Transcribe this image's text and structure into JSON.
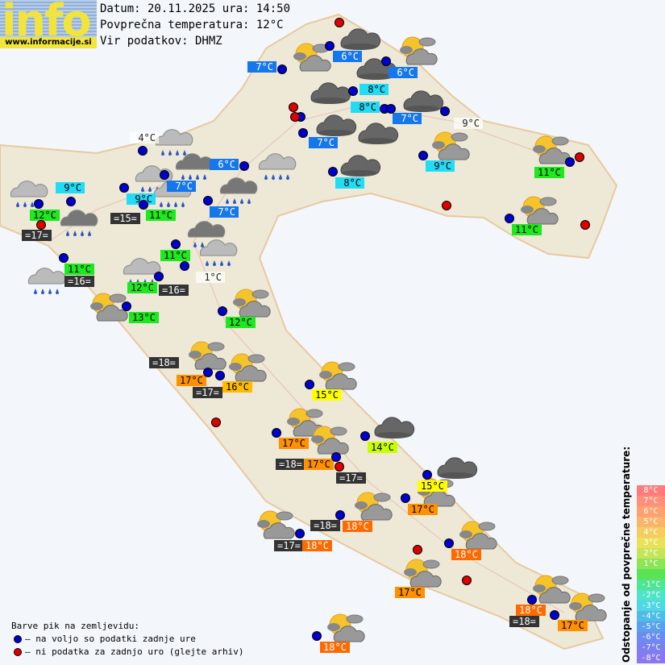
{
  "header": {
    "logo_text": "info",
    "logo_url": "www.informacije.si",
    "date_line": "Datum: 20.11.2025 ura: 14:50",
    "avg_temp_line": "Povprečna temperatura: 12°C",
    "source_line": "Vir podatkov: DHMZ"
  },
  "colors": {
    "blue": "#1577ec",
    "cyan": "#22dcf6",
    "green": "#1ee81e",
    "dark": "#333333",
    "orange": "#ff9000",
    "amber": "#ffbb00",
    "yellow": "#ffff00",
    "lime": "#c8ff00",
    "red_orange": "#ff6a00",
    "dot_ok": "#0000cc",
    "dot_missing": "#dd0000",
    "land": "#eee8d6",
    "sea": "#f3f7fb"
  },
  "stations": [
    {
      "label": "7°C",
      "style": "blue"
    },
    {
      "label": "6°C",
      "style": "blue"
    },
    {
      "label": "6°C",
      "style": "blue"
    },
    {
      "label": "8°C",
      "style": "cyan"
    },
    {
      "label": "8°C",
      "style": "cyan"
    },
    {
      "label": "7°C",
      "style": "blue"
    },
    {
      "label": "7°C",
      "style": "blue"
    },
    {
      "label": "9°C",
      "style": "plain"
    },
    {
      "label": "9°C",
      "style": "cyan"
    },
    {
      "label": "8°C",
      "style": "cyan"
    },
    {
      "label": "6°C",
      "style": "blue"
    },
    {
      "label": "7°C",
      "style": "blue"
    },
    {
      "label": "7°C",
      "style": "blue"
    },
    {
      "label": "9°C",
      "style": "cyan"
    },
    {
      "label": "9°C",
      "style": "cyan"
    },
    {
      "label": "4°C",
      "style": "plain"
    },
    {
      "label": "12°C",
      "style": "green"
    },
    {
      "label": "=17=",
      "style": "dark"
    },
    {
      "label": "=15=",
      "style": "dark"
    },
    {
      "label": "11°C",
      "style": "green"
    },
    {
      "label": "11°C",
      "style": "green"
    },
    {
      "label": "=16=",
      "style": "dark"
    },
    {
      "label": "11°C",
      "style": "green"
    },
    {
      "label": "1°C",
      "style": "plain"
    },
    {
      "label": "12°C",
      "style": "green"
    },
    {
      "label": "=16=",
      "style": "dark"
    },
    {
      "label": "13°C",
      "style": "green"
    },
    {
      "label": "12°C",
      "style": "green"
    },
    {
      "label": "11°C",
      "style": "green"
    },
    {
      "label": "11°C",
      "style": "green"
    },
    {
      "label": "=18=",
      "style": "dark"
    },
    {
      "label": "17°C",
      "style": "orange"
    },
    {
      "label": "=17=",
      "style": "dark"
    },
    {
      "label": "16°C",
      "style": "amber"
    },
    {
      "label": "15°C",
      "style": "yellow"
    },
    {
      "label": "17°C",
      "style": "orange"
    },
    {
      "label": "14°C",
      "style": "lime"
    },
    {
      "label": "=18=",
      "style": "dark"
    },
    {
      "label": "17°C",
      "style": "orange"
    },
    {
      "label": "=17=",
      "style": "dark"
    },
    {
      "label": "15°C",
      "style": "yellow"
    },
    {
      "label": "17°C",
      "style": "orange"
    },
    {
      "label": "=18=",
      "style": "dark"
    },
    {
      "label": "18°C",
      "style": "red_orange"
    },
    {
      "label": "=17=",
      "style": "dark"
    },
    {
      "label": "18°C",
      "style": "red_orange"
    },
    {
      "label": "18°C",
      "style": "red_orange"
    },
    {
      "label": "17°C",
      "style": "orange"
    },
    {
      "label": "18°C",
      "style": "red_orange"
    },
    {
      "label": "=18=",
      "style": "dark"
    },
    {
      "label": "17°C",
      "style": "orange"
    },
    {
      "label": "18°C",
      "style": "red_orange"
    }
  ],
  "weather_icons": [
    "partly-cloudy",
    "dark-cloud",
    "partly-cloudy",
    "dark-cloud",
    "dark-cloud",
    "dark-cloud",
    "dark-cloud",
    "dark-cloud",
    "partly-cloudy",
    "partly-cloudy",
    "dark-cloud",
    "partly-cloudy",
    "rain-cloud",
    "rain-cloud",
    "rain-cloud",
    "rain-cloud",
    "rain-cloud",
    "rain-cloud",
    "rain-cloud",
    "rain-cloud",
    "rain-cloud",
    "rain-cloud",
    "rain-cloud",
    "rain-cloud",
    "partly-cloudy",
    "partly-cloudy",
    "partly-cloudy",
    "partly-cloudy",
    "partly-cloudy",
    "partly-cloudy",
    "partly-cloudy",
    "dark-cloud",
    "dark-cloud",
    "partly-cloudy",
    "partly-cloudy",
    "partly-cloudy",
    "partly-cloudy",
    "partly-cloudy",
    "partly-cloudy",
    "partly-cloudy",
    "partly-cloudy"
  ],
  "legend": {
    "title": "Barve pik na zemljevidu:",
    "available": "– na voljo so podatki zadnje ure",
    "missing": "– ni podatka za zadnjo uro (glejte arhiv)"
  },
  "scale": {
    "title": "Odstopanje od povprečne temperature:",
    "steps": [
      {
        "label": "8°C",
        "color": "#ff7b7b"
      },
      {
        "label": "7°C",
        "color": "#ff8f7a"
      },
      {
        "label": "6°C",
        "color": "#ffa070"
      },
      {
        "label": "5°C",
        "color": "#f9b56a"
      },
      {
        "label": "4°C",
        "color": "#f5cc60"
      },
      {
        "label": "3°C",
        "color": "#eae15a"
      },
      {
        "label": "2°C",
        "color": "#c6e45a"
      },
      {
        "label": "1°C",
        "color": "#8de455"
      },
      {
        "label": "",
        "color": "#5ae455"
      },
      {
        "label": "-1°C",
        "color": "#4fe496"
      },
      {
        "label": "-2°C",
        "color": "#4fe4c8"
      },
      {
        "label": "-3°C",
        "color": "#4fd8e4"
      },
      {
        "label": "-4°C",
        "color": "#4fbce8"
      },
      {
        "label": "-5°C",
        "color": "#5aa0ec"
      },
      {
        "label": "-6°C",
        "color": "#6a8cf0"
      },
      {
        "label": "-7°C",
        "color": "#7a80f0"
      },
      {
        "label": "-8°C",
        "color": "#8a78f0"
      }
    ]
  }
}
